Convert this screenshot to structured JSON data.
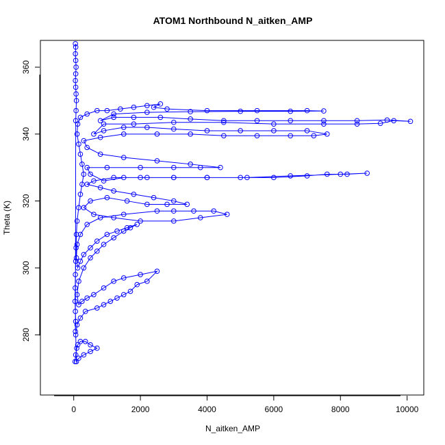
{
  "chart_data": {
    "type": "scatter",
    "title": "ATOM1 Northbound N_aitken_AMP",
    "xlabel": "N_aitken_AMP",
    "ylabel": "Theta (K)",
    "xlim": [
      -1000,
      10500
    ],
    "ylim": [
      262,
      368
    ],
    "xticks": [
      0,
      2000,
      4000,
      6000,
      8000,
      10000
    ],
    "yticks": [
      280,
      300,
      320,
      340,
      360
    ],
    "grid": false,
    "connected": true,
    "marker": "open-circle",
    "color": "#0000ff",
    "series": [
      {
        "points": [
          [
            40,
            272
          ],
          [
            60,
            274
          ],
          [
            90,
            276
          ],
          [
            120,
            277
          ],
          [
            200,
            278
          ],
          [
            350,
            278
          ],
          [
            500,
            277
          ],
          [
            700,
            276
          ],
          [
            500,
            275
          ],
          [
            300,
            274
          ],
          [
            150,
            273
          ],
          [
            80,
            272
          ],
          [
            60,
            280
          ],
          [
            100,
            283
          ],
          [
            200,
            285
          ],
          [
            350,
            287
          ],
          [
            700,
            288
          ],
          [
            900,
            289
          ],
          [
            1100,
            290
          ],
          [
            1300,
            291
          ],
          [
            1500,
            292
          ],
          [
            1700,
            293
          ],
          [
            1900,
            295
          ],
          [
            2200,
            296
          ],
          [
            2500,
            299
          ],
          [
            2000,
            298
          ],
          [
            1500,
            297
          ],
          [
            1200,
            296
          ],
          [
            900,
            294
          ],
          [
            600,
            292
          ],
          [
            400,
            291
          ],
          [
            250,
            290
          ],
          [
            150,
            289
          ],
          [
            100,
            292
          ],
          [
            150,
            296
          ],
          [
            300,
            300
          ],
          [
            500,
            303
          ],
          [
            700,
            305
          ],
          [
            900,
            307
          ],
          [
            1200,
            309
          ],
          [
            1500,
            311
          ],
          [
            1700,
            312
          ],
          [
            1900,
            313
          ],
          [
            1600,
            312
          ],
          [
            1300,
            311
          ],
          [
            1000,
            310
          ],
          [
            700,
            308
          ],
          [
            500,
            306
          ],
          [
            300,
            304
          ],
          [
            200,
            302
          ],
          [
            120,
            300
          ],
          [
            80,
            303
          ],
          [
            100,
            307
          ],
          [
            200,
            310
          ],
          [
            400,
            313
          ],
          [
            800,
            315
          ],
          [
            1500,
            316
          ],
          [
            2500,
            317
          ],
          [
            3000,
            317
          ],
          [
            3600,
            317
          ],
          [
            4200,
            317
          ],
          [
            4600,
            316
          ],
          [
            3800,
            315
          ],
          [
            3000,
            314
          ],
          [
            2000,
            314
          ],
          [
            1200,
            315
          ],
          [
            600,
            316
          ],
          [
            300,
            318
          ],
          [
            500,
            320
          ],
          [
            1000,
            321
          ],
          [
            1600,
            320
          ],
          [
            2200,
            319
          ],
          [
            2800,
            319
          ],
          [
            3400,
            319
          ],
          [
            3000,
            320
          ],
          [
            2400,
            321
          ],
          [
            1800,
            322
          ],
          [
            1200,
            323
          ],
          [
            800,
            324
          ],
          [
            400,
            325
          ],
          [
            600,
            326
          ],
          [
            1200,
            327
          ],
          [
            2000,
            327
          ],
          [
            3000,
            327
          ],
          [
            4000,
            327
          ],
          [
            5000,
            327
          ],
          [
            6000,
            327
          ],
          [
            7000,
            327.5
          ],
          [
            7600,
            328
          ],
          [
            8200,
            328
          ],
          [
            8800,
            328.3
          ],
          [
            8000,
            328
          ],
          [
            6500,
            327.5
          ],
          [
            5200,
            327
          ],
          [
            4000,
            327
          ],
          [
            3000,
            327
          ],
          [
            2200,
            327
          ],
          [
            1500,
            327
          ],
          [
            900,
            326
          ],
          [
            500,
            328
          ],
          [
            400,
            330
          ],
          [
            1000,
            330
          ],
          [
            2000,
            330
          ],
          [
            3000,
            330
          ],
          [
            3800,
            330
          ],
          [
            4400,
            330
          ],
          [
            3500,
            331
          ],
          [
            2500,
            332
          ],
          [
            1500,
            333
          ],
          [
            800,
            334
          ],
          [
            400,
            336
          ],
          [
            300,
            338
          ],
          [
            800,
            339
          ],
          [
            1500,
            340
          ],
          [
            2500,
            340
          ],
          [
            3500,
            340
          ],
          [
            4500,
            339.5
          ],
          [
            5500,
            339.5
          ],
          [
            6500,
            339.5
          ],
          [
            7200,
            339.5
          ],
          [
            7600,
            340
          ],
          [
            7000,
            341
          ],
          [
            6000,
            341
          ],
          [
            5000,
            341
          ],
          [
            4000,
            341
          ],
          [
            3000,
            341.5
          ],
          [
            2200,
            342
          ],
          [
            1500,
            342
          ],
          [
            900,
            341
          ],
          [
            600,
            340
          ],
          [
            900,
            343
          ],
          [
            1800,
            343
          ],
          [
            3000,
            343.5
          ],
          [
            4500,
            343.5
          ],
          [
            6000,
            343
          ],
          [
            7500,
            343
          ],
          [
            8500,
            343
          ],
          [
            9200,
            343.2
          ],
          [
            9600,
            344
          ],
          [
            10100,
            343.8
          ],
          [
            9400,
            344.2
          ],
          [
            8500,
            344
          ],
          [
            7500,
            344
          ],
          [
            6500,
            344
          ],
          [
            5500,
            344
          ],
          [
            4500,
            344
          ],
          [
            3500,
            344.5
          ],
          [
            2600,
            345
          ],
          [
            1800,
            345
          ],
          [
            1200,
            345
          ],
          [
            800,
            344
          ],
          [
            1200,
            346
          ],
          [
            2200,
            346.5
          ],
          [
            3500,
            346.7
          ],
          [
            5000,
            346.8
          ],
          [
            6500,
            346.8
          ],
          [
            7500,
            346.9
          ],
          [
            7000,
            347
          ],
          [
            5500,
            347
          ],
          [
            4000,
            347
          ],
          [
            2800,
            347.5
          ],
          [
            2400,
            348
          ],
          [
            2600,
            349
          ],
          [
            2200,
            348.5
          ],
          [
            1800,
            348
          ],
          [
            1400,
            347.5
          ],
          [
            1000,
            347
          ],
          [
            700,
            347
          ],
          [
            400,
            346
          ],
          [
            200,
            345
          ],
          [
            120,
            343
          ],
          [
            100,
            340
          ],
          [
            150,
            337
          ],
          [
            200,
            334
          ],
          [
            250,
            331
          ],
          [
            300,
            328
          ],
          [
            250,
            325
          ],
          [
            200,
            322
          ],
          [
            150,
            318
          ],
          [
            100,
            314
          ],
          [
            80,
            310
          ],
          [
            70,
            306
          ],
          [
            60,
            302
          ],
          [
            50,
            298
          ],
          [
            45,
            294
          ],
          [
            40,
            290
          ],
          [
            50,
            287
          ],
          [
            60,
            284
          ],
          [
            50,
            281
          ],
          [
            60,
            344
          ],
          [
            70,
            347
          ],
          [
            80,
            350
          ],
          [
            70,
            352
          ],
          [
            60,
            354
          ],
          [
            50,
            356
          ],
          [
            60,
            358
          ],
          [
            70,
            360
          ],
          [
            60,
            362
          ],
          [
            50,
            364
          ],
          [
            60,
            366
          ],
          [
            50,
            367
          ]
        ]
      }
    ]
  }
}
